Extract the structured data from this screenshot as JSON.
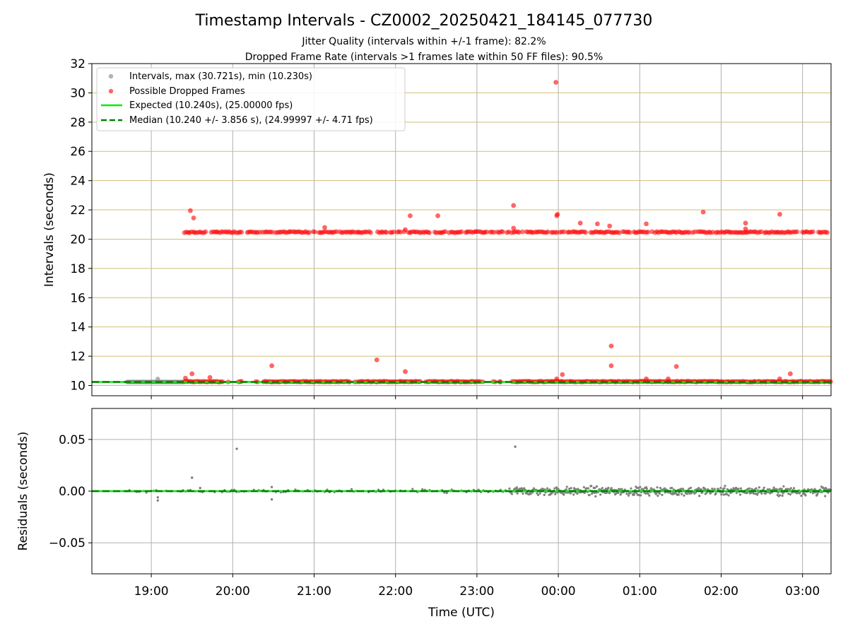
{
  "title": "Timestamp Intervals - CZ0002_20250421_184145_077730",
  "subtitle_1": "Jitter Quality (intervals within +/-1 frame): 82.2%",
  "subtitle_2": "Dropped Frame Rate (intervals >1 frames late within 50 FF files): 90.5%",
  "colors": {
    "intervals": "#808080",
    "dropped": "#ff0000",
    "expected": "#00ee00",
    "median": "#008000",
    "grid_h_top": "#d2be78",
    "grid": "#b0b0b0"
  },
  "chart_data": [
    {
      "type": "scatter",
      "panel": "intervals",
      "ylabel": "Intervals (seconds)",
      "xlabel": "",
      "xlim_hours": [
        18.27,
        27.35
      ],
      "ylim": [
        9.3,
        32
      ],
      "yticks": [
        10,
        12,
        14,
        16,
        18,
        20,
        22,
        24,
        26,
        28,
        30,
        32
      ],
      "grid": true,
      "legend_position": "top-left",
      "legend": [
        "Intervals, max (30.721s), min (10.230s)",
        "Possible Dropped Frames",
        "Expected (10.240s), (25.00000 fps)",
        "Median (10.240 +/- 3.856 s), (24.99997 +/- 4.71 fps)"
      ],
      "expected_value": 10.24,
      "median_value": 10.24,
      "normal_band": {
        "value": 10.24,
        "start_hour": 18.7,
        "end_hour": 27.35
      },
      "dropped_band_low": {
        "value": 10.24,
        "start_hour": 19.4,
        "end_hour": 27.35
      },
      "dropped_band_high": {
        "value": 20.48,
        "start_hour": 19.4,
        "end_hour": 27.3
      },
      "dropped_outliers": [
        [
          19.48,
          21.95
        ],
        [
          19.52,
          21.45
        ],
        [
          19.5,
          10.8
        ],
        [
          19.72,
          10.55
        ],
        [
          19.42,
          10.5
        ],
        [
          20.48,
          11.35
        ],
        [
          21.13,
          20.8
        ],
        [
          21.77,
          11.75
        ],
        [
          22.12,
          10.95
        ],
        [
          22.12,
          20.65
        ],
        [
          22.18,
          21.6
        ],
        [
          22.52,
          21.6
        ],
        [
          23.45,
          22.3
        ],
        [
          23.45,
          20.75
        ],
        [
          23.97,
          30.72
        ],
        [
          23.98,
          21.6
        ],
        [
          23.99,
          21.7
        ],
        [
          23.98,
          10.45
        ],
        [
          24.05,
          10.75
        ],
        [
          24.27,
          21.1
        ],
        [
          24.48,
          21.05
        ],
        [
          24.63,
          20.9
        ],
        [
          24.65,
          12.7
        ],
        [
          24.65,
          11.35
        ],
        [
          25.08,
          21.05
        ],
        [
          25.08,
          10.45
        ],
        [
          25.35,
          10.45
        ],
        [
          25.45,
          11.3
        ],
        [
          25.78,
          21.85
        ],
        [
          26.3,
          21.1
        ],
        [
          26.3,
          20.7
        ],
        [
          26.72,
          21.7
        ],
        [
          26.72,
          10.45
        ],
        [
          26.85,
          10.8
        ]
      ],
      "interval_outliers": [
        [
          19.08,
          10.45
        ]
      ]
    },
    {
      "type": "scatter",
      "panel": "residuals",
      "ylabel": "Residuals (seconds)",
      "xlabel": "Time (UTC)",
      "xlim_hours": [
        18.27,
        27.35
      ],
      "ylim": [
        -0.08,
        0.08
      ],
      "yticks": [
        0.05,
        0.0,
        -0.05
      ],
      "ytick_labels": [
        "0.05",
        "0.00",
        "−0.05"
      ],
      "xtick_hours": [
        19,
        20,
        21,
        22,
        23,
        24,
        25,
        26,
        27
      ],
      "xtick_labels": [
        "19:00",
        "20:00",
        "21:00",
        "22:00",
        "23:00",
        "00:00",
        "01:00",
        "02:00",
        "03:00"
      ],
      "grid": true,
      "quiet_range_hours": [
        18.7,
        23.4
      ],
      "noisy_range_hours": [
        23.4,
        27.35
      ],
      "residual_outliers": [
        [
          20.05,
          0.041
        ],
        [
          23.47,
          0.043
        ],
        [
          19.5,
          0.013
        ],
        [
          19.08,
          -0.009
        ],
        [
          19.08,
          -0.006
        ],
        [
          20.48,
          -0.008
        ],
        [
          20.48,
          0.004
        ],
        [
          19.6,
          0.003
        ]
      ]
    }
  ]
}
